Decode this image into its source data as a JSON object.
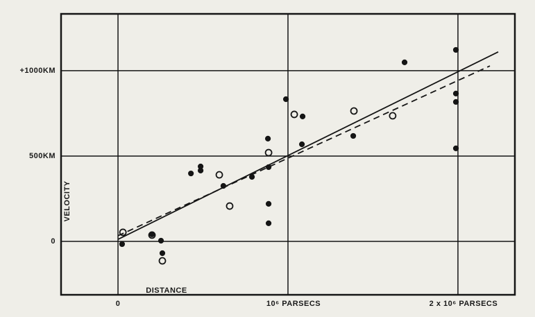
{
  "chart_data": {
    "type": "scatter",
    "x_label": "DISTANCE",
    "y_label": "VELOCITY",
    "xlim": [
      -0.335,
      2.335
    ],
    "ylim": [
      -313,
      1333
    ],
    "xticks": [
      0,
      {
        "value": 1,
        "label": "10⁶ PARSECS"
      },
      {
        "value": 2,
        "label": "2 x 10⁶ PARSECS"
      }
    ],
    "yticks": [
      0,
      {
        "value": 500,
        "label": "500KM"
      },
      {
        "value": 1000,
        "label": "+1000KM"
      }
    ],
    "grid": true,
    "series": [
      {
        "marker": "filled",
        "color": "#151515",
        "x": [
          0.024,
          0.2,
          0.253,
          0.261,
          0.429,
          0.486,
          0.486,
          0.62,
          0.788,
          0.882,
          0.886,
          0.886,
          0.886,
          0.988,
          1.086,
          1.082,
          1.384,
          1.686,
          1.988,
          1.988,
          1.988,
          1.988
        ],
        "values": [
          -16,
          41,
          4,
          -69,
          398,
          439,
          415,
          325,
          378,
          602,
          435,
          220,
          106,
          833,
          732,
          569,
          618,
          1049,
          1122,
          866,
          817,
          545
        ]
      },
      {
        "marker": "open",
        "color": "#151515",
        "x": [
          0.029,
          0.2,
          0.261,
          0.596,
          0.657,
          0.886,
          1.037,
          1.388,
          1.616
        ],
        "values": [
          53,
          37,
          -114,
          390,
          207,
          520,
          744,
          764,
          736
        ]
      },
      {
        "marker": "line",
        "dashed": false,
        "color": "#151515",
        "x": [
          0,
          2.237
        ],
        "values": [
          12,
          1110
        ]
      },
      {
        "marker": "line",
        "dashed": true,
        "color": "#151515",
        "x": [
          0,
          2.188
        ],
        "values": [
          33,
          1028
        ]
      }
    ]
  }
}
